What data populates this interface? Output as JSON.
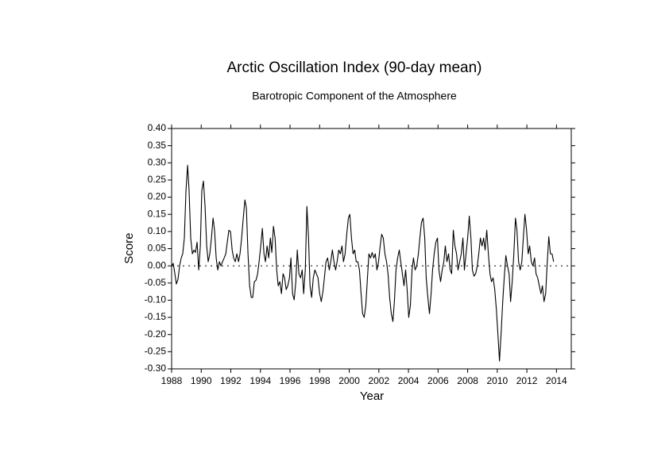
{
  "chart_data": {
    "type": "line",
    "title": "Arctic Oscillation Index (90-day mean)",
    "subtitle": "Barotropic Component of the Atmosphere",
    "xlabel": "Year",
    "ylabel": "Score",
    "color": "#000000",
    "zero_line": true,
    "xlim": [
      1988,
      2015
    ],
    "xticks": [
      1988,
      1990,
      1992,
      1994,
      1996,
      1998,
      2000,
      2002,
      2004,
      2006,
      2008,
      2010,
      2012,
      2014
    ],
    "ylim": [
      -0.3,
      0.4
    ],
    "yticks": [
      {
        "value": 0.4,
        "label": "0.40"
      },
      {
        "value": 0.35,
        "label": "0.35"
      },
      {
        "value": 0.3,
        "label": "0.30"
      },
      {
        "value": 0.25,
        "label": "0.25"
      },
      {
        "value": 0.2,
        "label": "0.20"
      },
      {
        "value": 0.15,
        "label": "0.15"
      },
      {
        "value": 0.1,
        "label": "0.10"
      },
      {
        "value": 0.05,
        "label": "0.05"
      },
      {
        "value": 0,
        "label": "0.00"
      },
      {
        "value": -0.05,
        "label": "-0.05"
      },
      {
        "value": -0.1,
        "label": "-0.10"
      },
      {
        "value": -0.15,
        "label": "-0.15"
      },
      {
        "value": -0.2,
        "label": "-0.20"
      },
      {
        "value": -0.25,
        "label": "-0.25"
      },
      {
        "value": -0.3,
        "label": "-0.30"
      }
    ],
    "x": [
      1988.0,
      1988.11,
      1988.22,
      1988.32,
      1988.43,
      1988.54,
      1988.65,
      1988.75,
      1988.86,
      1988.97,
      1989.08,
      1989.18,
      1989.29,
      1989.4,
      1989.51,
      1989.61,
      1989.72,
      1989.83,
      1989.94,
      1990.04,
      1990.15,
      1990.26,
      1990.37,
      1990.47,
      1990.58,
      1990.69,
      1990.8,
      1990.9,
      1991.01,
      1991.12,
      1991.23,
      1991.33,
      1991.44,
      1991.55,
      1991.66,
      1991.76,
      1991.87,
      1991.98,
      1992.09,
      1992.19,
      1992.3,
      1992.41,
      1992.52,
      1992.62,
      1992.73,
      1992.84,
      1992.95,
      1993.05,
      1993.16,
      1993.27,
      1993.38,
      1993.48,
      1993.59,
      1993.7,
      1993.81,
      1993.91,
      1994.02,
      1994.13,
      1994.24,
      1994.34,
      1994.45,
      1994.56,
      1994.67,
      1994.77,
      1994.88,
      1994.99,
      1995.1,
      1995.2,
      1995.31,
      1995.42,
      1995.53,
      1995.63,
      1995.74,
      1995.85,
      1995.96,
      1996.06,
      1996.17,
      1996.28,
      1996.39,
      1996.49,
      1996.6,
      1996.71,
      1996.82,
      1996.92,
      1997.03,
      1997.14,
      1997.25,
      1997.35,
      1997.46,
      1997.57,
      1997.68,
      1997.78,
      1997.89,
      1998.0,
      1998.11,
      1998.22,
      1998.32,
      1998.43,
      1998.54,
      1998.65,
      1998.75,
      1998.86,
      1998.97,
      1999.08,
      1999.18,
      1999.29,
      1999.4,
      1999.51,
      1999.61,
      1999.72,
      1999.83,
      1999.94,
      2000.04,
      2000.15,
      2000.26,
      2000.37,
      2000.47,
      2000.58,
      2000.69,
      2000.8,
      2000.9,
      2001.01,
      2001.12,
      2001.23,
      2001.33,
      2001.44,
      2001.55,
      2001.66,
      2001.76,
      2001.87,
      2001.98,
      2002.09,
      2002.19,
      2002.3,
      2002.41,
      2002.52,
      2002.62,
      2002.73,
      2002.84,
      2002.95,
      2003.05,
      2003.16,
      2003.27,
      2003.38,
      2003.48,
      2003.59,
      2003.7,
      2003.81,
      2003.91,
      2004.02,
      2004.13,
      2004.24,
      2004.34,
      2004.45,
      2004.56,
      2004.67,
      2004.77,
      2004.88,
      2004.99,
      2005.1,
      2005.2,
      2005.31,
      2005.42,
      2005.53,
      2005.63,
      2005.74,
      2005.85,
      2005.96,
      2006.06,
      2006.17,
      2006.28,
      2006.39,
      2006.49,
      2006.6,
      2006.71,
      2006.82,
      2006.92,
      2007.03,
      2007.14,
      2007.25,
      2007.35,
      2007.46,
      2007.57,
      2007.68,
      2007.78,
      2007.89,
      2008.0,
      2008.11,
      2008.22,
      2008.32,
      2008.43,
      2008.54,
      2008.65,
      2008.75,
      2008.86,
      2008.97,
      2009.08,
      2009.18,
      2009.29,
      2009.4,
      2009.51,
      2009.61,
      2009.72,
      2009.83,
      2009.94,
      2010.04,
      2010.15,
      2010.26,
      2010.37,
      2010.47,
      2010.58,
      2010.69,
      2010.8,
      2010.9,
      2011.01,
      2011.12,
      2011.23,
      2011.33,
      2011.44,
      2011.55,
      2011.66,
      2011.76,
      2011.87,
      2011.98,
      2012.09,
      2012.19,
      2012.3,
      2012.41,
      2012.52,
      2012.62,
      2012.73,
      2012.84,
      2012.95,
      2013.05,
      2013.16,
      2013.27,
      2013.38,
      2013.48,
      2013.59,
      2013.7,
      2013.81
    ],
    "values": [
      0,
      0.007,
      -0.023,
      -0.053,
      -0.039,
      0,
      0.023,
      0.035,
      0.081,
      0.219,
      0.293,
      0.219,
      0.081,
      0.035,
      0.046,
      0.039,
      0.069,
      -0.012,
      0.058,
      0.219,
      0.247,
      0.173,
      0.058,
      0.012,
      0.035,
      0.081,
      0.139,
      0.104,
      0.023,
      -0.012,
      0.012,
      0,
      0.012,
      0.023,
      0.035,
      0.069,
      0.104,
      0.099,
      0.046,
      0.023,
      0.012,
      0.035,
      0.012,
      0.035,
      0.081,
      0.139,
      0.192,
      0.169,
      0.035,
      -0.058,
      -0.092,
      -0.092,
      -0.046,
      -0.042,
      -0.023,
      0.012,
      0.058,
      0.109,
      0.035,
      0.012,
      0.058,
      0.023,
      0.081,
      0.039,
      0.115,
      0.081,
      -0.012,
      -0.058,
      -0.046,
      -0.081,
      -0.023,
      -0.035,
      -0.069,
      -0.058,
      -0.035,
      0.023,
      -0.081,
      -0.099,
      -0.046,
      0.046,
      -0.023,
      -0.035,
      -0.012,
      -0.081,
      -0.012,
      0.173,
      0.081,
      -0.058,
      -0.092,
      -0.035,
      -0.012,
      -0.023,
      -0.035,
      -0.081,
      -0.104,
      -0.076,
      -0.035,
      0.012,
      0.023,
      -0.012,
      0.012,
      0.046,
      0.012,
      -0.012,
      0.012,
      0.046,
      0.035,
      0.058,
      0.012,
      0.035,
      0.092,
      0.139,
      0.15,
      0.081,
      0.035,
      0.046,
      0.012,
      0.012,
      -0.012,
      -0.081,
      -0.139,
      -0.15,
      -0.115,
      -0.035,
      0.035,
      0.023,
      0.039,
      0.023,
      0.035,
      -0.012,
      0.012,
      0.058,
      0.092,
      0.081,
      0.035,
      0.012,
      -0.023,
      -0.092,
      -0.139,
      -0.162,
      -0.104,
      -0.012,
      0.023,
      0.046,
      0.012,
      -0.023,
      -0.058,
      -0.012,
      -0.069,
      -0.15,
      -0.115,
      -0.012,
      0.023,
      -0.012,
      0,
      0.035,
      0.081,
      0.127,
      0.139,
      0.081,
      -0.035,
      -0.092,
      -0.139,
      -0.081,
      -0.012,
      0.035,
      0.069,
      0.081,
      -0.012,
      -0.046,
      -0.012,
      0.012,
      0.058,
      0.012,
      0.035,
      -0.012,
      -0.023,
      0.104,
      0.058,
      0.035,
      -0.012,
      0.012,
      0.035,
      0.081,
      -0.012,
      0.035,
      0.081,
      0.145,
      0.081,
      -0.012,
      -0.03,
      -0.023,
      0,
      0.035,
      0.081,
      0.058,
      0.081,
      0.046,
      0.104,
      0.035,
      -0.023,
      -0.046,
      -0.035,
      -0.069,
      -0.127,
      -0.196,
      -0.277,
      -0.196,
      -0.104,
      -0.035,
      0.03,
      0,
      -0.023,
      -0.104,
      -0.046,
      0.035,
      0.139,
      0.104,
      0.012,
      -0.012,
      0.012,
      0.081,
      0.15,
      0.104,
      0.035,
      0.058,
      0.012,
      0,
      0.023,
      -0.023,
      -0.035,
      -0.058,
      -0.081,
      -0.058,
      -0.104,
      -0.081,
      0.012,
      0.085,
      0.035,
      0.035,
      0.012
    ]
  }
}
